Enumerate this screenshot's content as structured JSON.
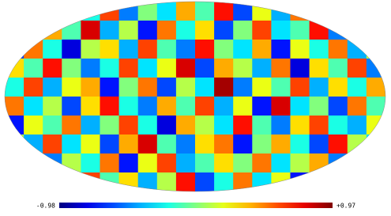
{
  "chart_data": {
    "type": "heatmap",
    "projection": "mollweide",
    "colormap": "jet",
    "zlim": [
      -0.98,
      0.97
    ],
    "zticks": [
      -0.98,
      {
        "value": 0.97,
        "label": "+0.97"
      }
    ],
    "values": [
      [
        -0.4,
        0.1,
        -0.6,
        0.3,
        -0.2,
        0.6,
        -0.5,
        0.0,
        -0.3,
        0.4,
        -0.1,
        0.7,
        -0.6,
        0.2,
        -0.4,
        0.5,
        -0.2,
        0.1,
        -0.7,
        0.3
      ],
      [
        0.2,
        -0.5,
        0.4,
        -0.1,
        0.8,
        -0.4,
        0.1,
        -0.7,
        0.5,
        -0.2,
        0.3,
        -0.6,
        0.0,
        0.6,
        -0.3,
        -0.1,
        0.7,
        -0.5,
        0.2,
        -0.3
      ],
      [
        -0.6,
        0.5,
        -0.2,
        -0.8,
        0.1,
        0.3,
        -0.4,
        0.6,
        -0.1,
        -0.5,
        0.7,
        0.0,
        -0.3,
        0.4,
        -0.7,
        0.2,
        -0.2,
        0.5,
        -0.4,
        0.1
      ],
      [
        0.3,
        -0.1,
        0.7,
        0.0,
        -0.5,
        -0.2,
        0.6,
        -0.3,
        0.2,
        0.8,
        -0.6,
        0.4,
        0.1,
        -0.4,
        0.5,
        -0.8,
        0.3,
        -0.1,
        0.6,
        -0.5
      ],
      [
        -0.2,
        0.6,
        -0.4,
        0.2,
        0.4,
        -0.7,
        0.0,
        0.5,
        -0.6,
        0.1,
        -0.3,
        0.9,
        -0.5,
        0.2,
        -0.1,
        0.6,
        -0.4,
        0.3,
        -0.2,
        0.4
      ],
      [
        0.5,
        -0.3,
        0.1,
        -0.6,
        0.3,
        0.7,
        -0.2,
        -0.5,
        0.4,
        -0.1,
        0.6,
        -0.4,
        0.2,
        -0.7,
        0.8,
        -0.3,
        0.0,
        -0.6,
        0.5,
        -0.1
      ],
      [
        -0.7,
        0.2,
        -0.1,
        0.5,
        -0.4,
        0.0,
        0.6,
        -0.2,
        -0.8,
        0.4,
        0.1,
        -0.3,
        0.7,
        -0.1,
        -0.5,
        0.3,
        0.6,
        -0.2,
        -0.4,
        0.2
      ],
      [
        0.1,
        -0.4,
        0.6,
        -0.3,
        0.2,
        -0.6,
        0.4,
        0.8,
        -0.1,
        -0.5,
        0.3,
        0.5,
        -0.7,
        0.0,
        0.4,
        -0.2,
        -0.6,
        0.7,
        0.1,
        -0.3
      ],
      [
        -0.3,
        0.7,
        -0.5,
        0.1,
        -0.2,
        0.5,
        -0.7,
        0.2,
        0.6,
        -0.4,
        -0.1,
        0.3,
        0.0,
        0.5,
        -0.3,
        0.1,
        0.4,
        -0.5,
        0.2,
        0.6
      ],
      [
        0.4,
        -0.2,
        0.0,
        -0.5,
        0.6,
        -0.1,
        0.3,
        -0.4,
        0.1,
        0.7,
        -0.6,
        -0.2,
        0.5,
        -0.3,
        0.2,
        -0.7,
        0.1,
        0.3,
        -0.1,
        -0.4
      ]
    ]
  }
}
